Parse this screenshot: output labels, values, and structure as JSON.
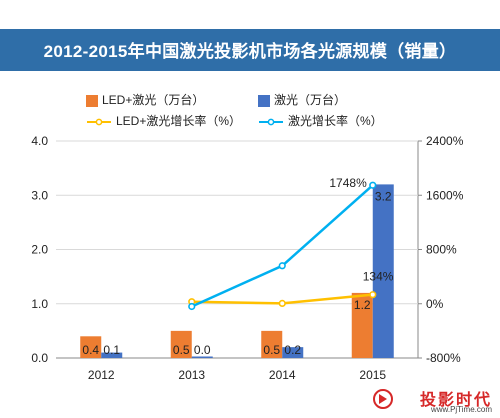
{
  "title": "2012-2015年中国激光投影机市场各光源规模（销量）",
  "legend": {
    "items": [
      {
        "label": "LED+激光（万台）",
        "color": "#ed7d31",
        "kind": "bar"
      },
      {
        "label": "激光（万台）",
        "color": "#4472c4",
        "kind": "bar"
      },
      {
        "label": "LED+激光增长率（%）",
        "color": "#ffc000",
        "kind": "line"
      },
      {
        "label": "激光增长率（%）",
        "color": "#00b0f0",
        "kind": "line"
      }
    ]
  },
  "chart_data": {
    "type": "bar",
    "categories": [
      "2012",
      "2013",
      "2014",
      "2015"
    ],
    "series": [
      {
        "name": "LED+激光（万台）",
        "type": "bar",
        "axis": "left",
        "color": "#ed7d31",
        "values": [
          0.4,
          0.5,
          0.5,
          1.2
        ],
        "labels": [
          "0.4",
          "0.5",
          "0.5",
          "1.2"
        ]
      },
      {
        "name": "激光（万台）",
        "type": "bar",
        "axis": "left",
        "color": "#4472c4",
        "values": [
          0.1,
          0.0,
          0.2,
          3.2
        ],
        "labels": [
          "0.1",
          "0.0",
          "0.2",
          "3.2"
        ]
      },
      {
        "name": "LED+激光增长率（%）",
        "type": "line",
        "axis": "right",
        "color": "#ffc000",
        "values": [
          null,
          30,
          5,
          134
        ],
        "labels": [
          "",
          "",
          "",
          "134%"
        ]
      },
      {
        "name": "激光增长率（%）",
        "type": "line",
        "axis": "right",
        "color": "#00b0f0",
        "values": [
          null,
          -40,
          560,
          1748
        ],
        "labels": [
          "",
          "",
          "",
          "1748%"
        ]
      }
    ],
    "ylim": [
      0,
      4.0
    ],
    "yticks": [
      "0.0",
      "1.0",
      "2.0",
      "3.0",
      "4.0"
    ],
    "y2lim": [
      -800,
      2400
    ],
    "y2ticks": [
      "-800%",
      "0%",
      "800%",
      "1600%",
      "2400%"
    ],
    "legend_position": "top"
  },
  "watermark": {
    "main": "投影时代",
    "sub": "www.PjTime.com"
  }
}
